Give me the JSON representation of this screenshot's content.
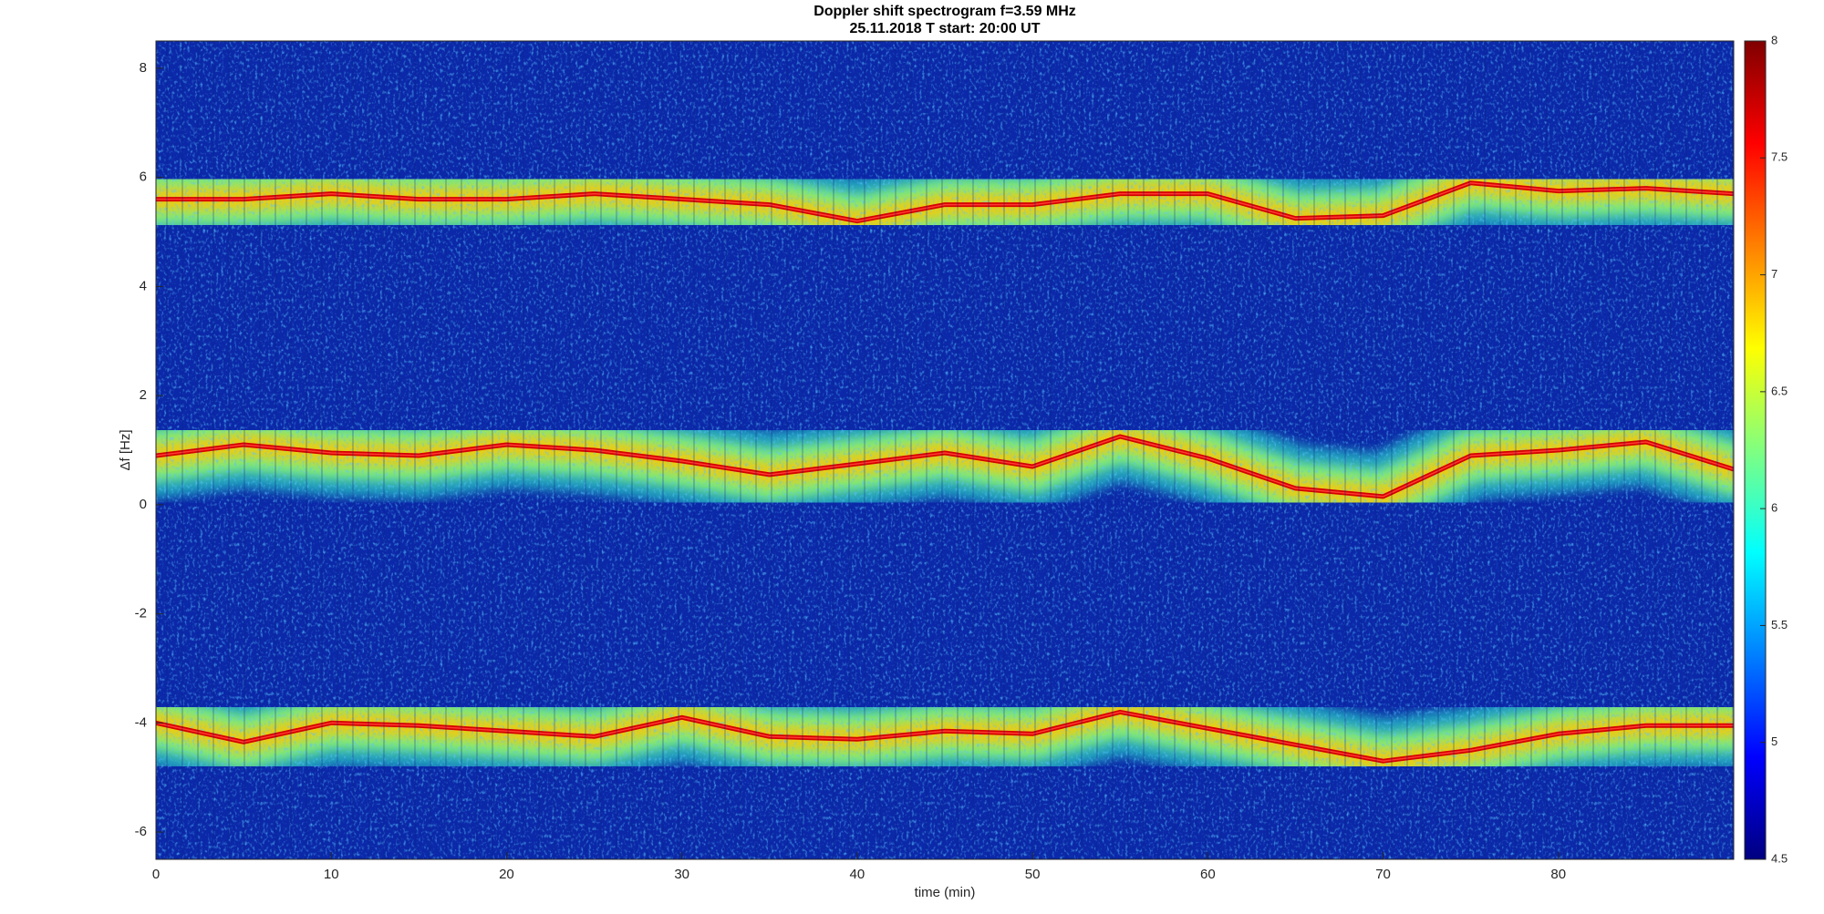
{
  "chart_data": {
    "type": "spectrogram",
    "title": "Doppler shift spectrogram f=3.59 MHz",
    "subtitle": "25.11.2018   T start: 20:00 UT",
    "xlabel": "time (min)",
    "ylabel": "Δf [Hz]",
    "x": [
      0,
      5,
      10,
      15,
      20,
      25,
      30,
      35,
      40,
      45,
      50,
      55,
      60,
      65,
      70,
      75,
      80,
      85,
      90
    ],
    "series": [
      {
        "color": "#d40000",
        "values": [
          5.6,
          5.6,
          5.7,
          5.6,
          5.6,
          5.7,
          5.6,
          5.5,
          5.2,
          5.5,
          5.5,
          5.7,
          5.7,
          5.25,
          5.3,
          5.9,
          5.75,
          5.8,
          5.7
        ]
      },
      {
        "color": "#d40000",
        "values": [
          0.9,
          1.1,
          0.95,
          0.9,
          1.1,
          1.0,
          0.8,
          0.55,
          0.75,
          0.95,
          0.7,
          1.25,
          0.85,
          0.3,
          0.15,
          0.9,
          1.0,
          1.15,
          0.65
        ]
      },
      {
        "color": "#d40000",
        "values": [
          -4.0,
          -4.35,
          -4.0,
          -4.05,
          -4.15,
          -4.25,
          -3.9,
          -4.25,
          -4.3,
          -4.15,
          -4.2,
          -3.8,
          -4.1,
          -4.4,
          -4.7,
          -4.5,
          -4.2,
          -4.05,
          -4.05
        ]
      }
    ],
    "xlim": [
      0,
      90
    ],
    "xticks": [
      0,
      10,
      20,
      30,
      40,
      50,
      60,
      70,
      80
    ],
    "ylim": [
      -6.5,
      8.5
    ],
    "yticks": [
      -6,
      -4,
      -2,
      0,
      2,
      4,
      6,
      8
    ],
    "colorbar": {
      "colormap": "jet",
      "lim": [
        4.5,
        8
      ],
      "ticks": [
        4.5,
        5,
        5.5,
        6,
        6.5,
        7,
        7.5,
        8
      ]
    }
  }
}
